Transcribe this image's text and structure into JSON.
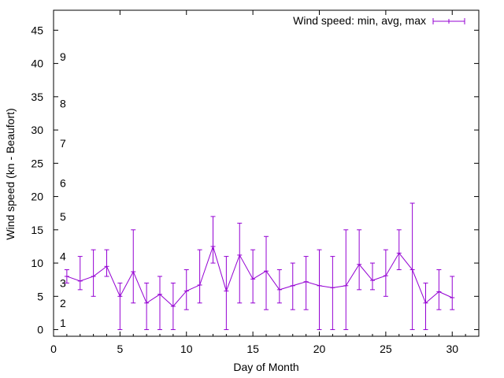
{
  "chart_data": {
    "type": "line",
    "title": "",
    "xlabel": "Day of Month",
    "ylabel": "Wind speed (kn - Beaufort)",
    "xlim": [
      0,
      32
    ],
    "ylim": [
      -1,
      48
    ],
    "x_ticks": [
      0,
      5,
      10,
      15,
      20,
      25,
      30
    ],
    "y_ticks": [
      0,
      5,
      10,
      15,
      20,
      25,
      30,
      35,
      40,
      45
    ],
    "x_tick_labels": [
      "0",
      "5",
      "10",
      "15",
      "20",
      "25",
      "30"
    ],
    "y_tick_labels": [
      "0",
      "5",
      "10",
      "15",
      "20",
      "25",
      "30",
      "35",
      "40",
      "45"
    ],
    "legend": {
      "label": "Wind speed: min, avg, max",
      "position": "top-right"
    },
    "beaufort_labels": [
      {
        "label": "1",
        "y": 1
      },
      {
        "label": "2",
        "y": 4
      },
      {
        "label": "3",
        "y": 7
      },
      {
        "label": "4",
        "y": 11
      },
      {
        "label": "5",
        "y": 17
      },
      {
        "label": "6",
        "y": 22
      },
      {
        "label": "7",
        "y": 28
      },
      {
        "label": "8",
        "y": 34
      },
      {
        "label": "9",
        "y": 41
      }
    ],
    "series": [
      {
        "name": "Wind speed: min, avg, max",
        "color": "#9400d3",
        "points": [
          {
            "x": 1,
            "min": 7,
            "avg": 8.0,
            "max": 9
          },
          {
            "x": 2,
            "min": 6,
            "avg": 7.3,
            "max": 11
          },
          {
            "x": 3,
            "min": 5,
            "avg": 8.0,
            "max": 12
          },
          {
            "x": 4,
            "min": 8,
            "avg": 9.5,
            "max": 12
          },
          {
            "x": 5,
            "min": 0,
            "avg": 5.0,
            "max": 7
          },
          {
            "x": 6,
            "min": 4,
            "avg": 8.7,
            "max": 15
          },
          {
            "x": 7,
            "min": 0,
            "avg": 4.0,
            "max": 7
          },
          {
            "x": 8,
            "min": 0,
            "avg": 5.3,
            "max": 8
          },
          {
            "x": 9,
            "min": 0,
            "avg": 3.5,
            "max": 7
          },
          {
            "x": 10,
            "min": 3,
            "avg": 5.8,
            "max": 9
          },
          {
            "x": 11,
            "min": 4,
            "avg": 6.7,
            "max": 12
          },
          {
            "x": 12,
            "min": 10,
            "avg": 12.5,
            "max": 17
          },
          {
            "x": 13,
            "min": 0,
            "avg": 5.8,
            "max": 11
          },
          {
            "x": 14,
            "min": 4,
            "avg": 11.2,
            "max": 16
          },
          {
            "x": 15,
            "min": 4,
            "avg": 7.6,
            "max": 12
          },
          {
            "x": 16,
            "min": 3,
            "avg": 8.8,
            "max": 14
          },
          {
            "x": 17,
            "min": 4,
            "avg": 6.0,
            "max": 9
          },
          {
            "x": 18,
            "min": 3,
            "avg": 6.6,
            "max": 10
          },
          {
            "x": 19,
            "min": 3,
            "avg": 7.2,
            "max": 11
          },
          {
            "x": 20,
            "min": 0,
            "avg": 6.6,
            "max": 12
          },
          {
            "x": 21,
            "min": 0,
            "avg": 6.3,
            "max": 11
          },
          {
            "x": 22,
            "min": 0,
            "avg": 6.6,
            "max": 15
          },
          {
            "x": 23,
            "min": 6,
            "avg": 9.8,
            "max": 15
          },
          {
            "x": 24,
            "min": 6,
            "avg": 7.4,
            "max": 10
          },
          {
            "x": 25,
            "min": 5,
            "avg": 8.1,
            "max": 12
          },
          {
            "x": 26,
            "min": 9,
            "avg": 11.5,
            "max": 15
          },
          {
            "x": 27,
            "min": 0,
            "avg": 9.0,
            "max": 19
          },
          {
            "x": 28,
            "min": 0,
            "avg": 4.0,
            "max": 7
          },
          {
            "x": 29,
            "min": 3,
            "avg": 5.7,
            "max": 9
          },
          {
            "x": 30,
            "min": 3,
            "avg": 4.8,
            "max": 8
          }
        ]
      }
    ]
  }
}
